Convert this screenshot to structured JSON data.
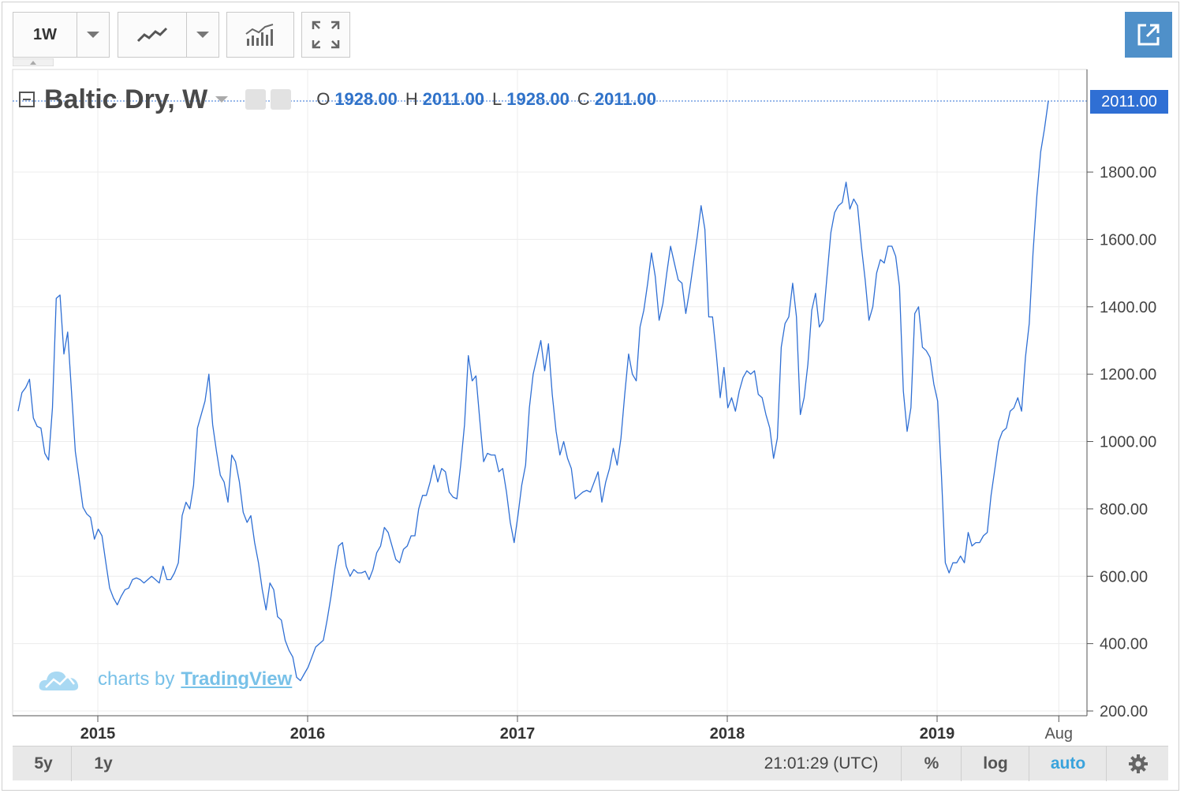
{
  "toolbar": {
    "interval": "1W",
    "icons": [
      "chevron-down-icon",
      "line-chart-icon",
      "chevron-down-icon",
      "indicators-icon",
      "fullscreen-icon",
      "popout-icon"
    ]
  },
  "legend": {
    "symbol": "Baltic Dry, W",
    "open_label": "O",
    "open": "1928.00",
    "high_label": "H",
    "high": "2011.00",
    "low_label": "L",
    "low": "1928.00",
    "close_label": "C",
    "close": "2011.00"
  },
  "last_price": "2011.00",
  "watermark": {
    "prefix": "charts by",
    "brand": "TradingView"
  },
  "bottom_bar": {
    "ranges": [
      "5y",
      "1y"
    ],
    "time": "21:01:29 (UTC)",
    "percent": "%",
    "log": "log",
    "auto": "auto"
  },
  "colors": {
    "line": "#2f6fd4",
    "accent": "#4f90c9",
    "watermark": "#78c1e8"
  },
  "chart_data": {
    "type": "line",
    "series_name": "Baltic Dry, W",
    "x_start": "2014.62",
    "x_end": "2019.53",
    "ylim": [
      200,
      2100
    ],
    "y_ticks": [
      "200.00",
      "400.00",
      "600.00",
      "800.00",
      "1000.00",
      "1200.00",
      "1400.00",
      "1600.00",
      "1800.00"
    ],
    "y_tick_values": [
      200,
      400,
      600,
      800,
      1000,
      1200,
      1400,
      1600,
      1800
    ],
    "x_ticks": [
      "2015",
      "2016",
      "2017",
      "2018",
      "2019",
      "Aug"
    ],
    "x_tick_values": [
      2015.0,
      2016.0,
      2017.0,
      2018.0,
      2019.0,
      2019.58
    ],
    "last_value": 2011,
    "values": [
      1090,
      1145,
      1160,
      1185,
      1070,
      1045,
      1040,
      965,
      945,
      1100,
      1425,
      1435,
      1260,
      1325,
      1150,
      970,
      890,
      805,
      785,
      775,
      710,
      740,
      720,
      640,
      565,
      535,
      515,
      540,
      560,
      565,
      590,
      595,
      590,
      580,
      590,
      600,
      590,
      580,
      630,
      590,
      590,
      610,
      640,
      780,
      820,
      800,
      870,
      1040,
      1080,
      1120,
      1200,
      1050,
      970,
      900,
      880,
      820,
      960,
      940,
      880,
      790,
      760,
      780,
      700,
      640,
      560,
      500,
      580,
      560,
      480,
      470,
      410,
      380,
      360,
      300,
      290,
      310,
      330,
      360,
      390,
      400,
      410,
      470,
      540,
      620,
      690,
      700,
      630,
      600,
      620,
      610,
      610,
      615,
      590,
      620,
      670,
      690,
      745,
      730,
      690,
      650,
      640,
      680,
      690,
      720,
      720,
      800,
      840,
      840,
      880,
      930,
      880,
      920,
      910,
      850,
      835,
      830,
      930,
      1050,
      1255,
      1180,
      1195,
      1065,
      940,
      965,
      960,
      960,
      910,
      920,
      850,
      760,
      700,
      780,
      870,
      930,
      1100,
      1200,
      1250,
      1300,
      1210,
      1290,
      1140,
      1030,
      960,
      1000,
      950,
      920,
      830,
      840,
      850,
      855,
      850,
      880,
      910,
      820,
      880,
      920,
      980,
      930,
      1010,
      1140,
      1260,
      1200,
      1180,
      1340,
      1390,
      1470,
      1560,
      1490,
      1360,
      1410,
      1500,
      1580,
      1530,
      1480,
      1470,
      1380,
      1450,
      1530,
      1610,
      1700,
      1630,
      1370,
      1370,
      1260,
      1130,
      1220,
      1100,
      1130,
      1090,
      1150,
      1190,
      1210,
      1200,
      1210,
      1140,
      1130,
      1080,
      1040,
      950,
      1010,
      1280,
      1350,
      1370,
      1470,
      1370,
      1080,
      1130,
      1230,
      1390,
      1440,
      1340,
      1360,
      1490,
      1620,
      1680,
      1700,
      1710,
      1770,
      1690,
      1720,
      1700,
      1580,
      1480,
      1360,
      1400,
      1500,
      1540,
      1530,
      1580,
      1580,
      1550,
      1460,
      1150,
      1030,
      1100,
      1380,
      1400,
      1280,
      1270,
      1250,
      1170,
      1120,
      900,
      640,
      610,
      640,
      640,
      660,
      640,
      730,
      690,
      700,
      700,
      720,
      730,
      840,
      920,
      1000,
      1030,
      1040,
      1090,
      1100,
      1130,
      1090,
      1250,
      1350,
      1560,
      1730,
      1860,
      1928,
      2011
    ]
  }
}
